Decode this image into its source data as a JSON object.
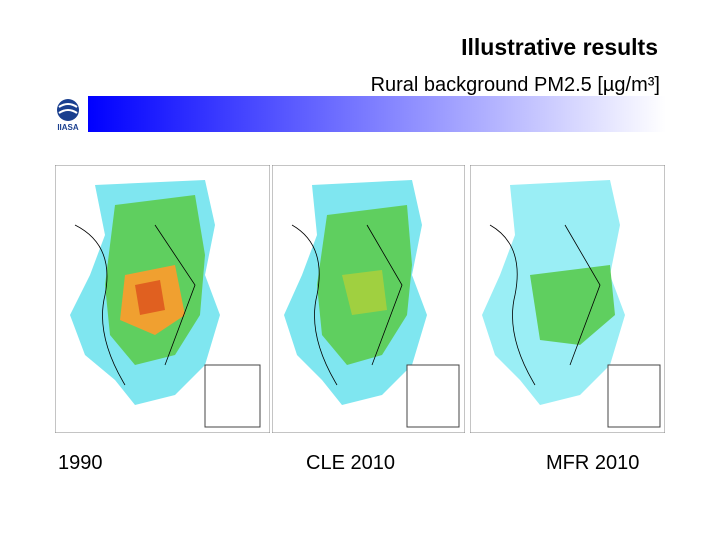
{
  "header": {
    "title": "Illustrative results",
    "subtitle": "Rural background PM2.5 [µg/m³]",
    "logo": "IIASA"
  },
  "panels": [
    {
      "label": "1990"
    },
    {
      "label": "CLE 2010"
    },
    {
      "label": "MFR 2010"
    }
  ]
}
